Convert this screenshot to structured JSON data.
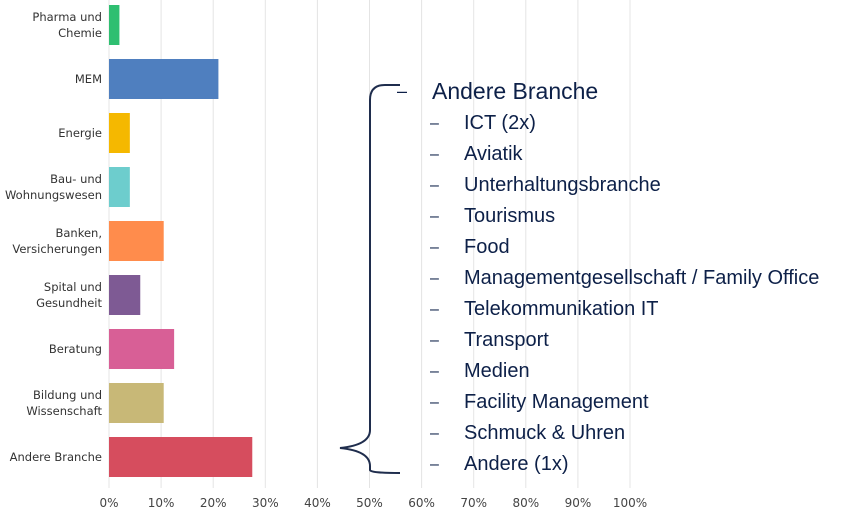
{
  "chart_data": {
    "type": "bar",
    "orientation": "horizontal",
    "categories": [
      [
        "Pharma und",
        "Chemie"
      ],
      [
        "MEM"
      ],
      [
        "Energie"
      ],
      [
        "Bau- und",
        "Wohnungswesen"
      ],
      [
        "Banken,",
        "Versicherungen"
      ],
      [
        "Spital und",
        "Gesundheit"
      ],
      [
        "Beratung"
      ],
      [
        "Bildung und",
        "Wissenschaft"
      ],
      [
        "Andere Branche"
      ]
    ],
    "values": [
      2,
      21,
      4,
      4,
      10.5,
      6,
      12.5,
      10.5,
      27.5
    ],
    "colors": [
      "#2fbf71",
      "#4f7fbf",
      "#f5b800",
      "#6dcdcd",
      "#ff8c4c",
      "#7e5a94",
      "#d85f96",
      "#c8b877",
      "#d64d5e"
    ],
    "xlim": [
      0,
      100
    ],
    "xticks": [
      "0%",
      "10%",
      "20%",
      "30%",
      "40%",
      "50%",
      "60%",
      "70%",
      "80%",
      "90%",
      "100%"
    ],
    "grid": true
  },
  "branch_list": {
    "heading": "Andere Branche",
    "dash": "–",
    "items": [
      "ICT (2x)",
      "Aviatik",
      "Unterhaltungsbranche",
      "Tourismus",
      "Food",
      "Managementgesellschaft / Family Office",
      "Telekommunikation IT",
      "Transport",
      "Medien",
      "Facility Management",
      "Schmuck & Uhren",
      "Andere (1x)"
    ]
  }
}
